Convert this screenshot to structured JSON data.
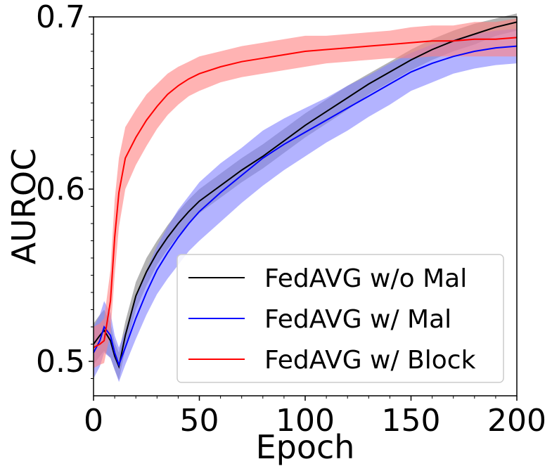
{
  "chart_data": {
    "type": "line",
    "title": "",
    "xlabel": "Epoch",
    "ylabel": "AUROC",
    "xlim": [
      0,
      200
    ],
    "ylim": [
      0.48,
      0.7
    ],
    "xticks": [
      0,
      50,
      100,
      150,
      200
    ],
    "xtick_labels": [
      "0",
      "50",
      "100",
      "150",
      "200"
    ],
    "yticks": [
      0.5,
      0.6,
      0.7
    ],
    "ytick_labels": [
      "0.5",
      "0.6",
      "0.7"
    ],
    "grid": false,
    "legend_position": "lower-right",
    "series": [
      {
        "name": "FedAVG w/o Mal",
        "color": "#000000",
        "band_color": "#808080",
        "points": [
          [
            0,
            0.51
          ],
          [
            3,
            0.515
          ],
          [
            5,
            0.518
          ],
          [
            8,
            0.512
          ],
          [
            10,
            0.503
          ],
          [
            12,
            0.497
          ],
          [
            15,
            0.515
          ],
          [
            20,
            0.538
          ],
          [
            25,
            0.552
          ],
          [
            30,
            0.563
          ],
          [
            35,
            0.572
          ],
          [
            40,
            0.58
          ],
          [
            45,
            0.587
          ],
          [
            50,
            0.593
          ],
          [
            60,
            0.602
          ],
          [
            70,
            0.611
          ],
          [
            80,
            0.619
          ],
          [
            90,
            0.628
          ],
          [
            100,
            0.637
          ],
          [
            110,
            0.645
          ],
          [
            120,
            0.653
          ],
          [
            130,
            0.661
          ],
          [
            140,
            0.668
          ],
          [
            150,
            0.675
          ],
          [
            160,
            0.681
          ],
          [
            170,
            0.686
          ],
          [
            180,
            0.69
          ],
          [
            190,
            0.694
          ],
          [
            200,
            0.697
          ]
        ],
        "band_width": [
          0.012,
          0.012,
          0.012,
          0.01,
          0.008,
          0.008,
          0.008,
          0.008,
          0.008,
          0.007,
          0.007,
          0.007,
          0.007,
          0.007,
          0.007,
          0.007,
          0.007,
          0.007,
          0.007,
          0.007,
          0.007,
          0.006,
          0.006,
          0.006,
          0.006,
          0.006,
          0.006,
          0.005,
          0.005
        ]
      },
      {
        "name": "FedAVG w/ Mal",
        "color": "#0000ff",
        "band_color": "#8080ff",
        "points": [
          [
            0,
            0.505
          ],
          [
            3,
            0.512
          ],
          [
            5,
            0.52
          ],
          [
            8,
            0.515
          ],
          [
            10,
            0.505
          ],
          [
            12,
            0.498
          ],
          [
            15,
            0.508
          ],
          [
            20,
            0.525
          ],
          [
            25,
            0.54
          ],
          [
            30,
            0.553
          ],
          [
            35,
            0.563
          ],
          [
            40,
            0.572
          ],
          [
            45,
            0.58
          ],
          [
            50,
            0.587
          ],
          [
            60,
            0.598
          ],
          [
            70,
            0.608
          ],
          [
            80,
            0.618
          ],
          [
            90,
            0.626
          ],
          [
            100,
            0.633
          ],
          [
            110,
            0.64
          ],
          [
            120,
            0.647
          ],
          [
            130,
            0.654
          ],
          [
            140,
            0.661
          ],
          [
            150,
            0.668
          ],
          [
            160,
            0.673
          ],
          [
            170,
            0.677
          ],
          [
            180,
            0.68
          ],
          [
            190,
            0.682
          ],
          [
            200,
            0.683
          ]
        ],
        "band_width": [
          0.015,
          0.015,
          0.015,
          0.013,
          0.01,
          0.01,
          0.01,
          0.012,
          0.013,
          0.014,
          0.015,
          0.016,
          0.016,
          0.017,
          0.017,
          0.016,
          0.016,
          0.015,
          0.014,
          0.013,
          0.013,
          0.012,
          0.012,
          0.011,
          0.011,
          0.01,
          0.01,
          0.01,
          0.01
        ]
      },
      {
        "name": "FedAVG w/ Block",
        "color": "#ff0000",
        "band_color": "#ff8080",
        "points": [
          [
            0,
            0.508
          ],
          [
            3,
            0.51
          ],
          [
            5,
            0.512
          ],
          [
            8,
            0.535
          ],
          [
            10,
            0.572
          ],
          [
            12,
            0.598
          ],
          [
            15,
            0.618
          ],
          [
            20,
            0.63
          ],
          [
            25,
            0.64
          ],
          [
            30,
            0.648
          ],
          [
            35,
            0.655
          ],
          [
            40,
            0.66
          ],
          [
            45,
            0.664
          ],
          [
            50,
            0.667
          ],
          [
            60,
            0.671
          ],
          [
            70,
            0.674
          ],
          [
            80,
            0.676
          ],
          [
            90,
            0.678
          ],
          [
            100,
            0.68
          ],
          [
            110,
            0.681
          ],
          [
            120,
            0.682
          ],
          [
            130,
            0.683
          ],
          [
            140,
            0.684
          ],
          [
            150,
            0.685
          ],
          [
            160,
            0.686
          ],
          [
            170,
            0.686
          ],
          [
            180,
            0.687
          ],
          [
            190,
            0.687
          ],
          [
            200,
            0.688
          ]
        ],
        "band_width": [
          0.012,
          0.012,
          0.013,
          0.018,
          0.022,
          0.02,
          0.018,
          0.016,
          0.015,
          0.013,
          0.012,
          0.011,
          0.01,
          0.01,
          0.009,
          0.009,
          0.009,
          0.009,
          0.009,
          0.008,
          0.008,
          0.008,
          0.008,
          0.009,
          0.009,
          0.009,
          0.01,
          0.01,
          0.011
        ]
      }
    ]
  }
}
